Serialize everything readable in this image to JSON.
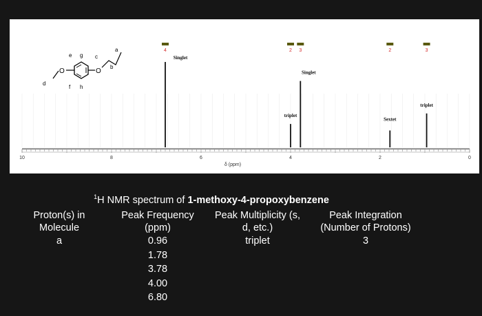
{
  "molecule_labels": {
    "a": "a",
    "b": "b",
    "c": "c",
    "d": "d",
    "e": "e",
    "f": "f",
    "g": "g",
    "h": "h"
  },
  "chart_data": {
    "type": "line",
    "xlabel": "δ (ppm)",
    "xlim": [
      10,
      0
    ],
    "x_ticks": [
      "10",
      "8",
      "6",
      "4",
      "2",
      "0"
    ],
    "x_tick_values": [
      10,
      8,
      6,
      4,
      2,
      0
    ],
    "peaks": [
      {
        "ppm": 6.8,
        "height": 1.0,
        "multiplicity_label": "Singlet",
        "integration": "4"
      },
      {
        "ppm": 4.0,
        "height": 0.22,
        "multiplicity_label": "triplet",
        "integration": "2"
      },
      {
        "ppm": 3.78,
        "height": 0.75,
        "multiplicity_label": "Singlet",
        "integration": "3"
      },
      {
        "ppm": 1.78,
        "height": 0.14,
        "multiplicity_label": "Sextet",
        "integration": "2"
      },
      {
        "ppm": 0.96,
        "height": 0.35,
        "multiplicity_label": "triplet",
        "integration": "3"
      }
    ],
    "integration_color": "#5a5a10",
    "integration_text_color": "#d42a2a"
  },
  "caption": {
    "prefix_sup": "1",
    "prefix": "H NMR spectrum of ",
    "compound": "1-methoxy-4-propoxybenzene"
  },
  "table": {
    "headers": [
      [
        "Proton(s) in",
        "Molecule"
      ],
      [
        "Peak Frequency",
        "(ppm)"
      ],
      [
        "Peak Multiplicity (s,",
        "d, etc.)"
      ],
      [
        "Peak Integration",
        "(Number of Protons)"
      ]
    ],
    "col_protons": [
      "a"
    ],
    "col_frequency": [
      "0.96",
      "1.78",
      "3.78",
      "4.00",
      "6.80"
    ],
    "col_multiplicity": [
      "triplet"
    ],
    "col_integration": [
      "3"
    ]
  }
}
